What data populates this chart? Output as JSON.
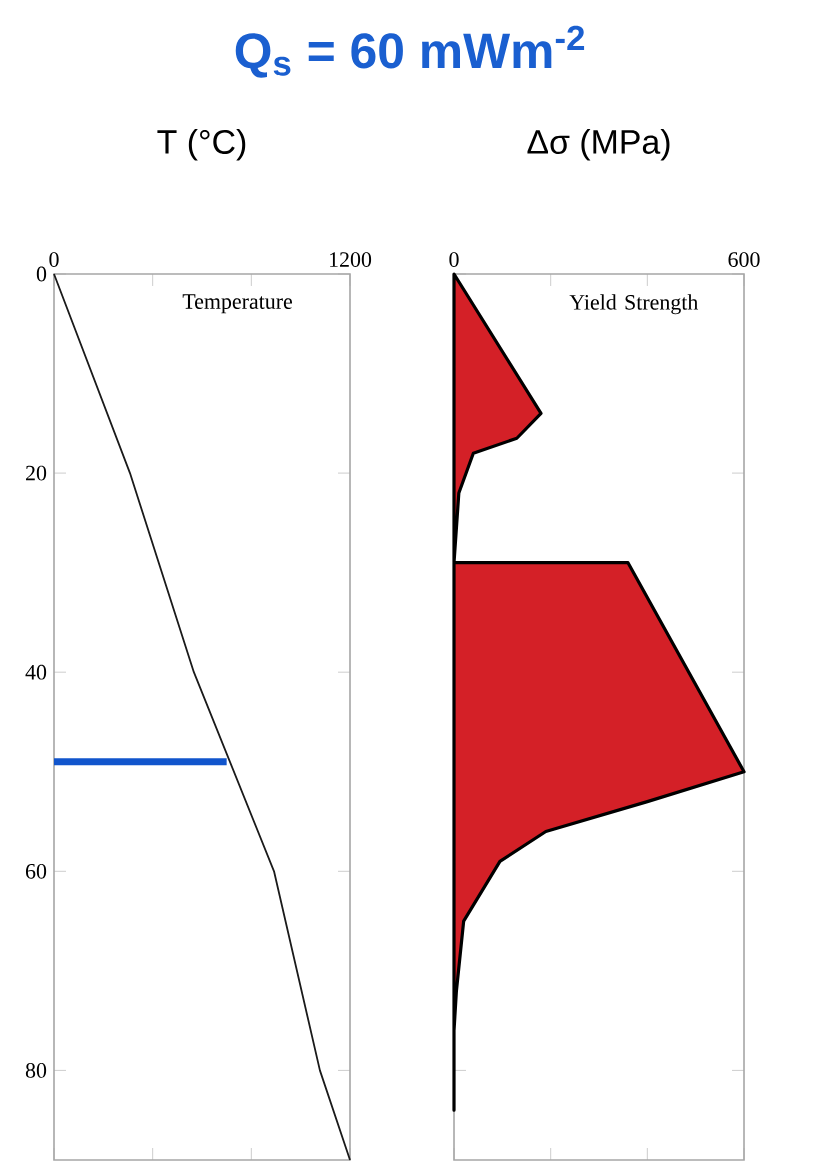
{
  "chart_data": [
    {
      "type": "line",
      "title": "Q$_{s}$ = 60 mWm$^{-2}$",
      "xlabel": "T (°C)",
      "xlim": [
        0,
        1200
      ],
      "xticks": [
        0,
        {
          "value": 400,
          "label": null
        },
        {
          "value": 800,
          "label": null
        },
        1200
      ],
      "ylim": [
        89,
        0
      ],
      "yticks": [
        0,
        20,
        40,
        60,
        80
      ],
      "annotations": [
        "Temperature"
      ],
      "series": [
        {
          "color": "#1a1a1a",
          "x": [
            0,
            308,
            567,
            892,
            1078,
            1200
          ],
          "values": [
            0,
            20,
            40,
            60,
            80,
            89
          ]
        },
        {
          "color": "#1155cc",
          "x": [
            0,
            700
          ],
          "values": [
            49,
            49
          ]
        }
      ]
    },
    {
      "type": "area",
      "orientation": "horizontal",
      "xlabel": "Δσ (MPa)",
      "xlim": [
        0,
        600
      ],
      "xticks": [
        0,
        {
          "value": 200,
          "label": null
        },
        {
          "value": 400,
          "label": null
        },
        600
      ],
      "ylim": [
        89,
        0
      ],
      "yticks": [
        0,
        20,
        40,
        60,
        80
      ],
      "tick_labels": "x",
      "annotations": [
        "Yield Strength"
      ],
      "series": [
        {
          "color": "#d42027",
          "x": [
            0,
            14,
            16.5,
            18,
            22,
            29,
            29,
            50,
            53,
            56,
            59,
            65,
            72,
            76,
            84
          ],
          "values": [
            0,
            180,
            130,
            40,
            10,
            0,
            360,
            600,
            400,
            190,
            95,
            20,
            5,
            0,
            0
          ]
        }
      ]
    }
  ]
}
